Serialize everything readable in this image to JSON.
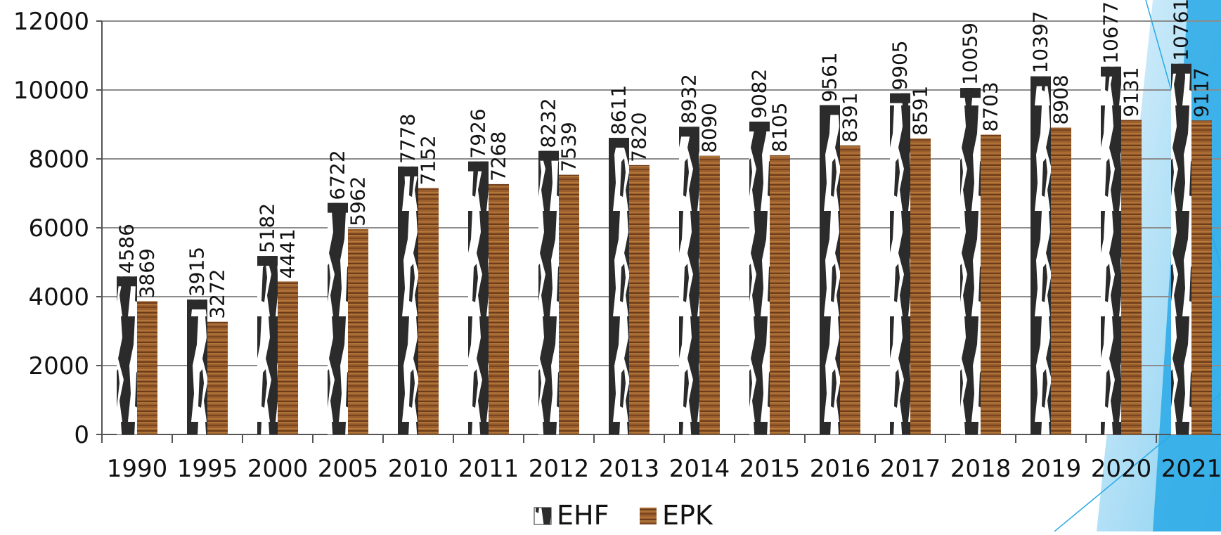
{
  "chart_data": {
    "type": "bar",
    "categories": [
      "1990",
      "1995",
      "2000",
      "2005",
      "2010",
      "2011",
      "2012",
      "2013",
      "2014",
      "2015",
      "2016",
      "2017",
      "2018",
      "2019",
      "2020",
      "2021"
    ],
    "series": [
      {
        "name": "EHF",
        "values": [
          4586,
          3915,
          5182,
          6722,
          7778,
          7926,
          8232,
          8611,
          8932,
          9082,
          9561,
          9905,
          10059,
          10397,
          10677,
          10761
        ],
        "pattern": "black-white-camo",
        "color": "#2b2b2b"
      },
      {
        "name": "EPK",
        "values": [
          3869,
          3272,
          4441,
          5962,
          7152,
          7268,
          7539,
          7820,
          8090,
          8105,
          8391,
          8591,
          8703,
          8908,
          9131,
          9117
        ],
        "pattern": "wood-grain",
        "color": "#9a5f2c"
      }
    ],
    "y_ticks": [
      "0",
      "2000",
      "4000",
      "6000",
      "8000",
      "10000",
      "12000"
    ],
    "ylim": [
      0,
      12000
    ],
    "grid": true,
    "legend_position": "bottom-center",
    "decoration_colors": [
      "#29a9e6",
      "#bfe6f8"
    ]
  }
}
